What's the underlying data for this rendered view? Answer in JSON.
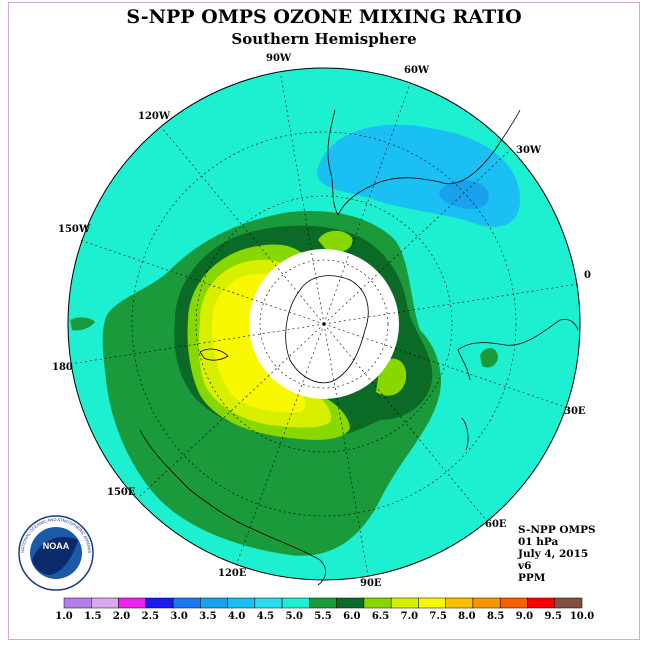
{
  "title": "S-NPP OMPS OZONE MIXING RATIO",
  "subtitle": "Southern Hemisphere",
  "longitude_labels": [
    "90W",
    "60W",
    "30W",
    "0",
    "30E",
    "60E",
    "90E",
    "120E",
    "150E",
    "180",
    "150W",
    "120W"
  ],
  "info": {
    "instrument": "S-NPP OMPS",
    "level": "01 hPa",
    "date": "July 4, 2015",
    "version": "v6",
    "units": "PPM"
  },
  "logo": {
    "text": "NOAA",
    "ring_text": "NATIONAL OCEANIC AND ATMOSPHERIC ADMINISTRATION"
  },
  "colorbar": {
    "labels": [
      "1.0",
      "1.5",
      "2.0",
      "2.5",
      "3.0",
      "3.5",
      "4.0",
      "4.5",
      "5.0",
      "5.5",
      "6.0",
      "6.5",
      "7.0",
      "7.5",
      "8.0",
      "8.5",
      "9.0",
      "9.5",
      "10.0"
    ],
    "colors": [
      "#b57fe8",
      "#d8a8f0",
      "#ee22ee",
      "#1a1aee",
      "#1a78ee",
      "#18a2ee",
      "#1ac0f4",
      "#28ddee",
      "#1cf0d0",
      "#1a9a3a",
      "#0a6a26",
      "#88d800",
      "#d8f000",
      "#f8f800",
      "#f8c000",
      "#f89800",
      "#f86000",
      "#f80000",
      "#805040"
    ]
  }
}
